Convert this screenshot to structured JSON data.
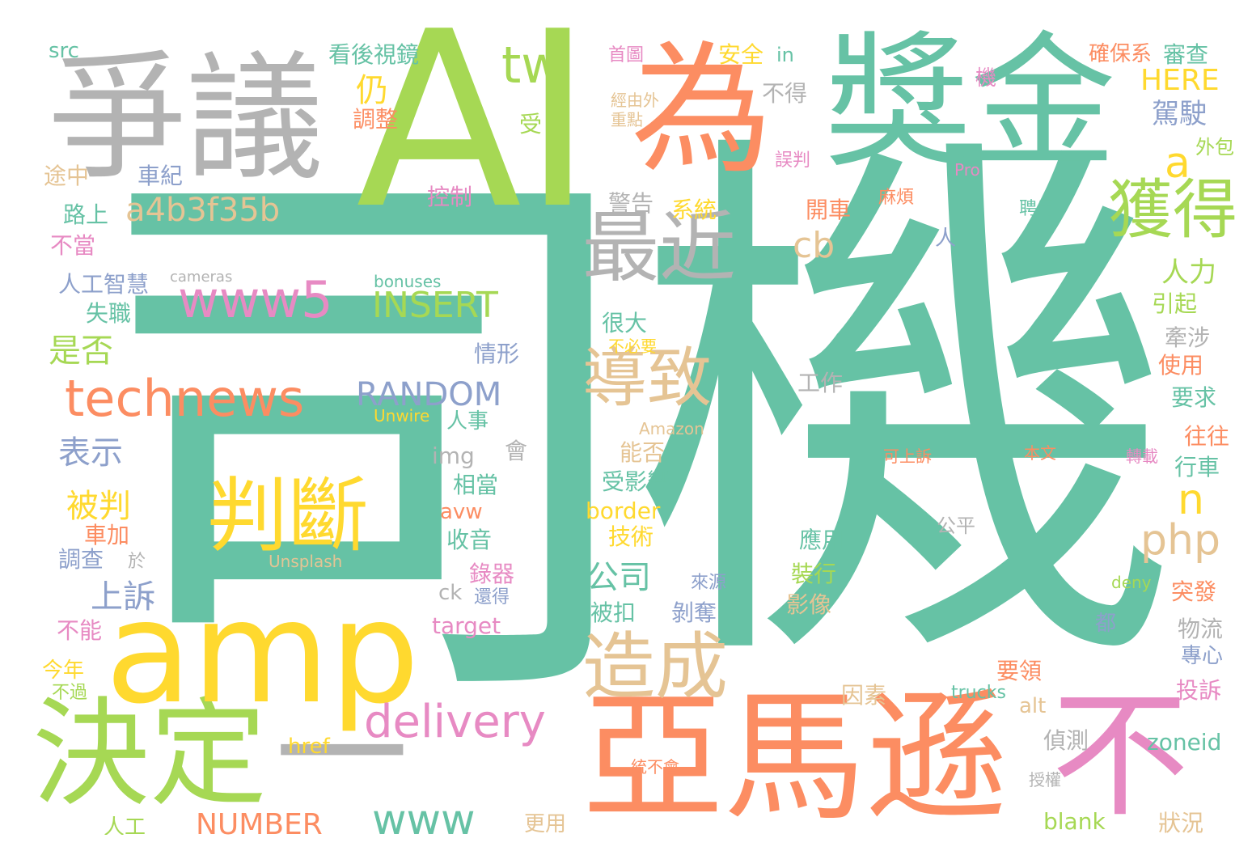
{
  "colors": {
    "teal": "#66c2a5",
    "orange": "#fc8d62",
    "blue": "#8da0cb",
    "pink": "#e78ac3",
    "green": "#a6d854",
    "yellow": "#ffd92f",
    "tan": "#e5c494",
    "gray": "#b3b3b3"
  },
  "words": [
    {
      "text": "機",
      "color": "teal"
    },
    {
      "text": "司",
      "color": "teal"
    },
    {
      "text": "AI",
      "color": "green"
    },
    {
      "text": "獎金",
      "color": "teal"
    },
    {
      "text": "爭議",
      "color": "gray"
    },
    {
      "text": "為",
      "color": "orange"
    },
    {
      "text": "亞馬遜",
      "color": "orange"
    },
    {
      "text": "決定",
      "color": "green"
    },
    {
      "text": "amp",
      "color": "yellow"
    },
    {
      "text": "不",
      "color": "pink"
    },
    {
      "text": "判斷",
      "color": "yellow"
    },
    {
      "text": "一",
      "color": "gray"
    },
    {
      "text": "最近",
      "color": "gray"
    },
    {
      "text": "獲得",
      "color": "green"
    },
    {
      "text": "導致",
      "color": "tan"
    },
    {
      "text": "造成",
      "color": "tan"
    },
    {
      "text": "technews",
      "color": "orange"
    },
    {
      "text": "www5",
      "color": "pink"
    },
    {
      "text": "delivery",
      "color": "pink"
    },
    {
      "text": "a4b3f35b",
      "color": "tan"
    },
    {
      "text": "tw",
      "color": "green"
    },
    {
      "text": "INSERT",
      "color": "green"
    },
    {
      "text": "RANDOM",
      "color": "blue"
    },
    {
      "text": "www",
      "color": "teal"
    },
    {
      "text": "NUMBER",
      "color": "orange"
    },
    {
      "text": "php",
      "color": "tan"
    },
    {
      "text": "HERE",
      "color": "yellow"
    },
    {
      "text": "a",
      "color": "yellow"
    },
    {
      "text": "cb",
      "color": "tan"
    },
    {
      "text": "n",
      "color": "yellow"
    },
    {
      "text": "駕駛",
      "color": "blue"
    },
    {
      "text": "人力",
      "color": "green"
    },
    {
      "text": "公司",
      "color": "teal"
    },
    {
      "text": "上訴",
      "color": "blue"
    },
    {
      "text": "被判",
      "color": "yellow"
    },
    {
      "text": "表示",
      "color": "blue"
    },
    {
      "text": "是否",
      "color": "green"
    },
    {
      "text": "仍",
      "color": "yellow"
    },
    {
      "text": "看後視鏡",
      "color": "teal"
    },
    {
      "text": "安全",
      "color": "yellow"
    },
    {
      "text": "in",
      "color": "teal"
    },
    {
      "text": "src",
      "color": "teal"
    },
    {
      "text": "首圖",
      "color": "pink"
    },
    {
      "text": "不得",
      "color": "gray"
    },
    {
      "text": "經由外",
      "color": "tan"
    },
    {
      "text": "重點",
      "color": "tan"
    },
    {
      "text": "調整",
      "color": "orange"
    },
    {
      "text": "受",
      "color": "green"
    },
    {
      "text": "誤判",
      "color": "pink"
    },
    {
      "text": "確保系",
      "color": "orange"
    },
    {
      "text": "審查",
      "color": "teal"
    },
    {
      "text": "機",
      "color": "pink"
    },
    {
      "text": "外包",
      "color": "green"
    },
    {
      "text": "Pro",
      "color": "pink"
    },
    {
      "text": "麻煩",
      "color": "orange"
    },
    {
      "text": "聘用",
      "color": "teal"
    },
    {
      "text": "途中",
      "color": "tan"
    },
    {
      "text": "車紀",
      "color": "blue"
    },
    {
      "text": "控制",
      "color": "pink"
    },
    {
      "text": "警告",
      "color": "gray"
    },
    {
      "text": "系統",
      "color": "yellow"
    },
    {
      "text": "開車",
      "color": "orange"
    },
    {
      "text": "路上",
      "color": "teal"
    },
    {
      "text": "不當",
      "color": "pink"
    },
    {
      "text": "人",
      "color": "blue"
    },
    {
      "text": "人工智慧",
      "color": "blue"
    },
    {
      "text": "cameras",
      "color": "gray"
    },
    {
      "text": "bonuses",
      "color": "teal"
    },
    {
      "text": "失職",
      "color": "teal"
    },
    {
      "text": "引起",
      "color": "green"
    },
    {
      "text": "很大",
      "color": "teal"
    },
    {
      "text": "不必要",
      "color": "yellow"
    },
    {
      "text": "牽涉",
      "color": "gray"
    },
    {
      "text": "情形",
      "color": "blue"
    },
    {
      "text": "使用",
      "color": "orange"
    },
    {
      "text": "工作",
      "color": "gray"
    },
    {
      "text": "要求",
      "color": "teal"
    },
    {
      "text": "Unwire",
      "color": "yellow"
    },
    {
      "text": "人事",
      "color": "teal"
    },
    {
      "text": "Amazon",
      "color": "tan"
    },
    {
      "text": "往往",
      "color": "orange"
    },
    {
      "text": "img",
      "color": "gray"
    },
    {
      "text": "會",
      "color": "gray"
    },
    {
      "text": "能否",
      "color": "tan"
    },
    {
      "text": "可上訴",
      "color": "orange"
    },
    {
      "text": "本文",
      "color": "orange"
    },
    {
      "text": "轉載",
      "color": "pink"
    },
    {
      "text": "行車",
      "color": "teal"
    },
    {
      "text": "相當",
      "color": "teal"
    },
    {
      "text": "受影響",
      "color": "teal"
    },
    {
      "text": "avw",
      "color": "orange"
    },
    {
      "text": "border",
      "color": "yellow"
    },
    {
      "text": "車加",
      "color": "orange"
    },
    {
      "text": "收音",
      "color": "teal"
    },
    {
      "text": "技術",
      "color": "yellow"
    },
    {
      "text": "公平",
      "color": "gray"
    },
    {
      "text": "應用",
      "color": "teal"
    },
    {
      "text": "調查",
      "color": "blue"
    },
    {
      "text": "於",
      "color": "gray"
    },
    {
      "text": "Unsplash",
      "color": "tan"
    },
    {
      "text": "錄器",
      "color": "pink"
    },
    {
      "text": "裝行",
      "color": "green"
    },
    {
      "text": "來源",
      "color": "blue"
    },
    {
      "text": "ck",
      "color": "gray"
    },
    {
      "text": "還得",
      "color": "blue"
    },
    {
      "text": "deny",
      "color": "green"
    },
    {
      "text": "影像",
      "color": "tan"
    },
    {
      "text": "突發",
      "color": "orange"
    },
    {
      "text": "被扣",
      "color": "teal"
    },
    {
      "text": "剝奪",
      "color": "blue"
    },
    {
      "text": "不能",
      "color": "pink"
    },
    {
      "text": "target",
      "color": "pink"
    },
    {
      "text": "都",
      "color": "blue"
    },
    {
      "text": "物流",
      "color": "gray"
    },
    {
      "text": "專心",
      "color": "blue"
    },
    {
      "text": "今年",
      "color": "yellow"
    },
    {
      "text": "要領",
      "color": "orange"
    },
    {
      "text": "不過",
      "color": "green"
    },
    {
      "text": "因素",
      "color": "tan"
    },
    {
      "text": "trucks",
      "color": "teal"
    },
    {
      "text": "alt",
      "color": "tan"
    },
    {
      "text": "投訴",
      "color": "pink"
    },
    {
      "text": "href",
      "color": "yellow"
    },
    {
      "text": "統不會",
      "color": "orange"
    },
    {
      "text": "偵測",
      "color": "gray"
    },
    {
      "text": "zoneid",
      "color": "teal"
    },
    {
      "text": "授權",
      "color": "gray"
    },
    {
      "text": "人工",
      "color": "green"
    },
    {
      "text": "更用",
      "color": "tan"
    },
    {
      "text": "blank",
      "color": "green"
    },
    {
      "text": "狀況",
      "color": "tan"
    }
  ]
}
